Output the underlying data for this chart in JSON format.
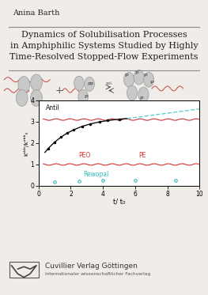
{
  "author": "Anina Barth",
  "title_line1": "Dynamics of Solubilisation Processes",
  "title_line2": "in Amphiphilic Systems Studied by Highly",
  "title_line3": "Time-Resolved Stopped-Flow Experiments",
  "publisher": "Cuvillier Verlag Göttingen",
  "publisher_sub": "Internationaler wissenschaftlicher Fachverlag",
  "bg_color": "#f0ede8",
  "plot_bg": "#ffffff",
  "antil_label": "Antil",
  "peo_label": "PEO",
  "pe_label": "PE",
  "rewopal_label": "Rewopal",
  "xlabel": "t/ t₀",
  "ylabel": "kᵒᵇᵇ/kᵒᵇᵇ₀",
  "xlim": [
    0,
    10
  ],
  "ylim": [
    0,
    4
  ],
  "xticks": [
    0,
    2,
    4,
    6,
    8,
    10
  ],
  "yticks": [
    0,
    1,
    2,
    3,
    4
  ],
  "antil_color": "#222222",
  "antil_dashed_color": "#66cccc",
  "peo_color": "#cc3333",
  "rewopal_color": "#33bbbb",
  "divider_color": "#888888",
  "text_color": "#222222"
}
